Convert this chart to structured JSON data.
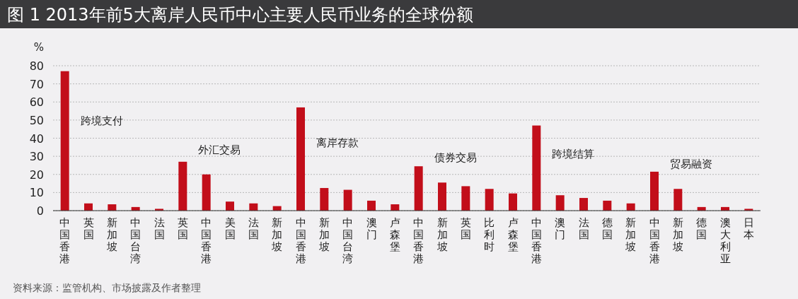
{
  "chart_data": {
    "type": "bar",
    "title": "图 1 2013年前5大离岸人民币中心主要人民币业务的全球份额",
    "ylabel": "%",
    "categories": [
      "中国香港",
      "英国",
      "新加坡",
      "中国台湾",
      "法国",
      "英国",
      "中国香港",
      "美国",
      "法国",
      "新加坡",
      "中国香港",
      "新加坡",
      "中国台湾",
      "澳门",
      "卢森堡",
      "中国香港",
      "新加坡",
      "英国",
      "比利时",
      "卢森堡",
      "中国香港",
      "澳门",
      "法国",
      "德国",
      "新加坡",
      "中国香港",
      "新加坡",
      "德国",
      "澳大利亚",
      "日本"
    ],
    "values": [
      77,
      4,
      3.5,
      2,
      1,
      27,
      20,
      5,
      4,
      2.5,
      57,
      12.5,
      11.5,
      5.5,
      3.5,
      24.5,
      15.5,
      13.5,
      12,
      9.5,
      47,
      8.5,
      7,
      5.5,
      4,
      21.5,
      12,
      2,
      2,
      1
    ],
    "color": "#c20e1a",
    "ylim": [
      0,
      80
    ],
    "yticks": [
      0,
      10,
      20,
      30,
      40,
      50,
      60,
      70,
      80
    ],
    "grid": "y",
    "annotations": [
      "跨境支付",
      "外汇交易",
      "离岸存款",
      "债券交易",
      "跨境结算",
      "贸易融资",
      "资料来源：监管机构、市场披露及作者整理"
    ]
  }
}
